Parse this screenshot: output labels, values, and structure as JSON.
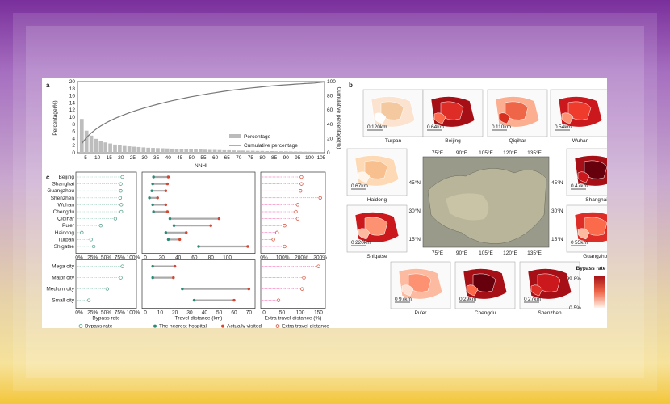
{
  "panel_labels": {
    "a": "a",
    "b": "b",
    "c": "c"
  },
  "chart_data": [
    {
      "id": "a",
      "type": "bar",
      "xlabel": "NNHI",
      "ylabel": "Percentage(%)",
      "y2label": "Cumulative percentage(%)",
      "ylim": [
        0,
        20
      ],
      "y2lim": [
        0,
        100
      ],
      "yticks": [
        "0",
        "2",
        "4",
        "6",
        "8",
        "10",
        "12",
        "14",
        "16",
        "18",
        "20"
      ],
      "y2ticks": [
        "0",
        "20",
        "40",
        "60",
        "80",
        "100"
      ],
      "xticks": [
        "5",
        "10",
        "15",
        "20",
        "25",
        "30",
        "35",
        "40",
        "45",
        "50",
        "55",
        "60",
        "65",
        "70",
        "75",
        "80",
        "85",
        "90",
        "95",
        "100",
        "105"
      ],
      "legend": [
        "Percentage",
        "Cumulative percentage"
      ],
      "legend_position": "right",
      "bars": [
        9.5,
        6.2,
        4.8,
        3.9,
        3.3,
        2.9,
        2.6,
        2.3,
        2.1,
        1.9,
        1.8,
        1.7,
        1.6,
        1.5,
        1.4,
        1.35,
        1.3,
        1.25,
        1.2,
        1.15,
        1.1,
        1.05,
        1.0,
        0.95,
        0.9,
        0.9,
        0.85,
        0.8,
        0.8,
        0.75,
        0.7,
        0.7,
        0.65,
        0.6,
        0.6,
        0.55,
        0.55,
        0.5,
        0.5,
        0.45,
        0.45,
        0.4,
        0.4,
        0.38,
        0.36,
        0.34,
        0.32,
        0.3,
        0.28,
        0.26
      ]
    },
    {
      "id": "c",
      "type": "scatter",
      "categories": [
        "Beijing",
        "Shanghai",
        "Guangzhou",
        "Shenzhen",
        "Wuhan",
        "Chengdu",
        "Qiqihar",
        "Pu'er",
        "Haidong",
        "Turpan",
        "Shigatse"
      ],
      "class_categories": [
        "Mega city",
        "Major city",
        "Medium city",
        "Small city"
      ],
      "bypass_ticks": [
        "0%",
        "25%",
        "50%",
        "75%",
        "100%"
      ],
      "travel_ticks_top": [
        "0",
        "20",
        "40",
        "60",
        "80",
        "100"
      ],
      "travel_ticks_bottom": [
        "0",
        "10",
        "20",
        "30",
        "40",
        "50",
        "60",
        "70"
      ],
      "extra_ticks": [
        "0%",
        "100%",
        "200%",
        "300%"
      ],
      "extra_ticks_bottom": [
        "0",
        "50",
        "100",
        "150"
      ],
      "xlabels": [
        "Bypass rate",
        "Travel distance (km)",
        "Extra travel distance (%)"
      ],
      "bypass_rate": [
        0.8,
        0.77,
        0.77,
        0.76,
        0.78,
        0.78,
        0.67,
        0.4,
        0.05,
        0.22,
        0.27
      ],
      "nearest_km": [
        10,
        9,
        8,
        5,
        9,
        10,
        30,
        35,
        25,
        28,
        65
      ],
      "visited_km": [
        28,
        27,
        25,
        15,
        25,
        27,
        90,
        80,
        50,
        42,
        125
      ],
      "extra_pct": [
        200,
        200,
        195,
        300,
        180,
        170,
        180,
        110,
        70,
        50,
        110
      ],
      "class_bypass": [
        0.8,
        0.77,
        0.52,
        0.18
      ],
      "class_nearest": [
        5,
        5,
        25,
        33
      ],
      "class_visited": [
        20,
        19,
        70,
        60
      ],
      "class_extra": [
        150,
        110,
        105,
        40
      ],
      "legend": [
        "Bypass rate",
        "The nearest hospital",
        "Actually visited",
        "Extra travel distance"
      ],
      "legend_position": "bottom"
    },
    {
      "id": "b",
      "type": "heatmap",
      "legend_title": "Bypass rate",
      "legend_max": "99.8%",
      "legend_min": "0.5%",
      "lon_ticks": [
        "75°E",
        "90°E",
        "105°E",
        "120°E",
        "135°E"
      ],
      "lat_ticks": [
        "45°N",
        "30°N",
        "15°N"
      ],
      "maps": [
        {
          "name": "Turpan",
          "scale": "120km"
        },
        {
          "name": "Beijing",
          "scale": "64km"
        },
        {
          "name": "Qiqihar",
          "scale": "110km"
        },
        {
          "name": "Wuhan",
          "scale": "54km"
        },
        {
          "name": "Haidong",
          "scale": "67km"
        },
        {
          "name": "Shanghai",
          "scale": "47km"
        },
        {
          "name": "Shigatse",
          "scale": "220km"
        },
        {
          "name": "Guangzhou",
          "scale": "55km"
        },
        {
          "name": "Pu'er",
          "scale": "97km"
        },
        {
          "name": "Chengdu",
          "scale": "29km"
        },
        {
          "name": "Shenzhen",
          "scale": "27km"
        }
      ]
    }
  ]
}
